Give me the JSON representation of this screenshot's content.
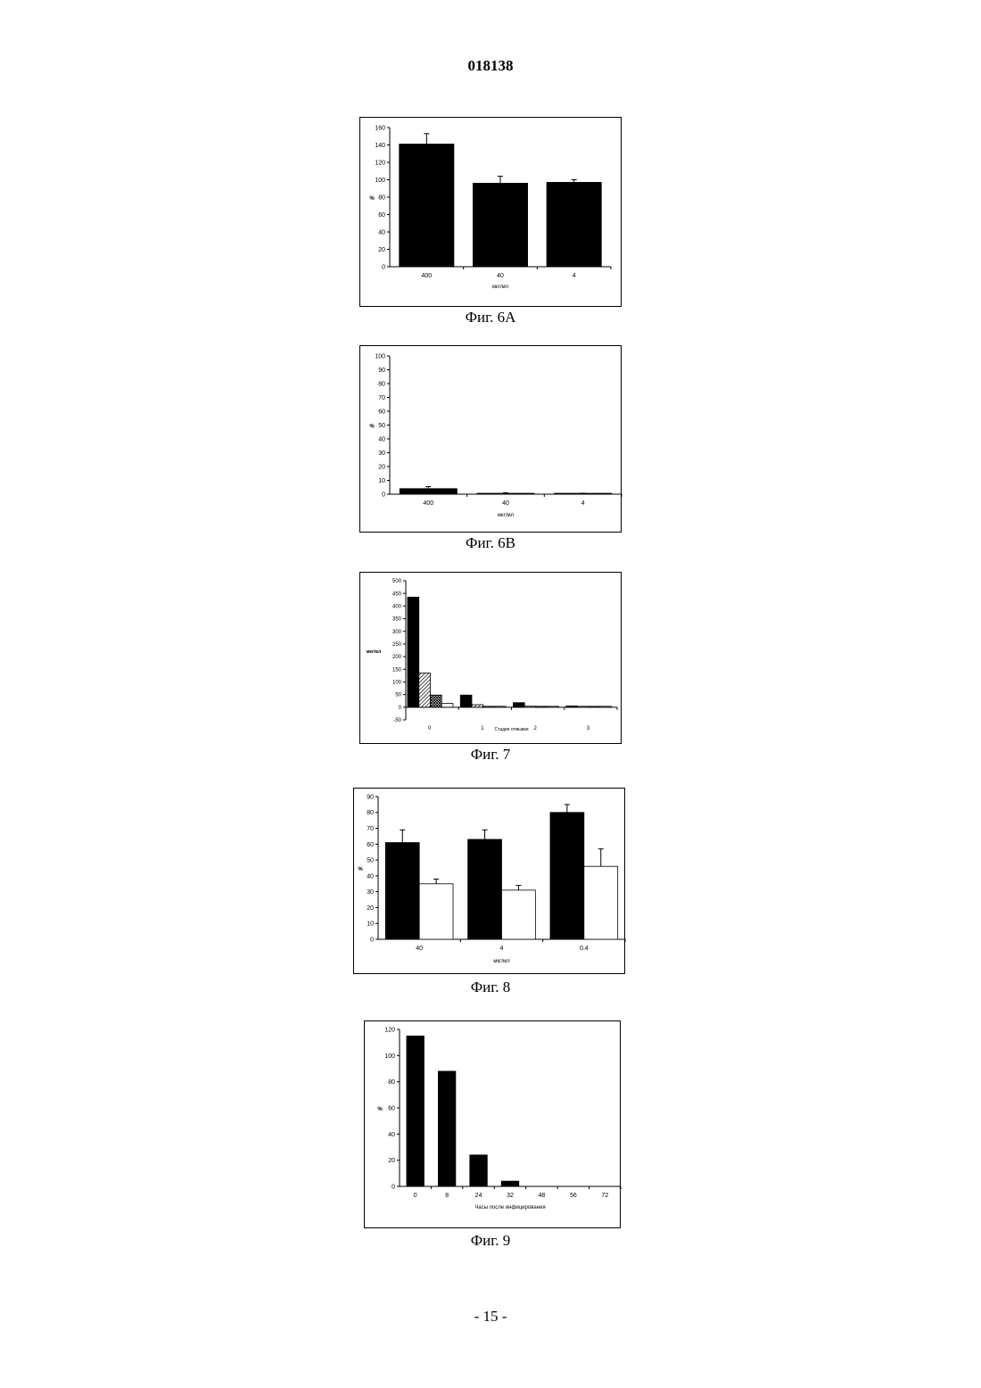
{
  "document": {
    "number": "018138",
    "page": "- 15 -"
  },
  "captions": [
    "Фиг. 6А",
    "Фиг. 6В",
    "Фиг. 7",
    "Фиг. 8",
    "Фиг. 9"
  ],
  "chart_data": [
    {
      "id": "fig6a",
      "type": "bar",
      "title": "",
      "categories": [
        "400",
        "40",
        "4"
      ],
      "series": [
        {
          "values": [
            141,
            96,
            97
          ],
          "errors": [
            12,
            8,
            3
          ],
          "fill": "solid"
        }
      ],
      "xlabel": "мкг/мл",
      "ylabel": "%",
      "ylim": [
        0,
        160
      ],
      "yticks": [
        0,
        20,
        40,
        60,
        80,
        100,
        120,
        140,
        160
      ],
      "grid": false,
      "legend": "none"
    },
    {
      "id": "fig6b",
      "type": "bar",
      "title": "",
      "categories": [
        "400",
        "40",
        "4"
      ],
      "series": [
        {
          "values": [
            4,
            0.3,
            0.2
          ],
          "errors": [
            1.5,
            0.7,
            0.5
          ],
          "fill": "solid"
        }
      ],
      "xlabel": "мкг/мл",
      "ylabel": "%",
      "ylim": [
        0,
        100
      ],
      "yticks": [
        0,
        10,
        20,
        30,
        40,
        50,
        60,
        70,
        80,
        90,
        100
      ],
      "grid": false,
      "legend": "none"
    },
    {
      "id": "fig7",
      "type": "bar",
      "title": "",
      "categories": [
        "0",
        "1",
        "2",
        "3"
      ],
      "series": [
        {
          "values": [
            435,
            48,
            18,
            5
          ],
          "fill": "solid"
        },
        {
          "values": [
            135,
            10,
            4,
            1
          ],
          "fill": "diagonal"
        },
        {
          "values": [
            48,
            3,
            2,
            1
          ],
          "fill": "crosshatch"
        },
        {
          "values": [
            15,
            1,
            1,
            1
          ],
          "fill": "white"
        }
      ],
      "xlabel": "Стадия отмывки",
      "ylabel": "мкг/мл",
      "ylim": [
        -50,
        500
      ],
      "yticks": [
        -50,
        0,
        50,
        100,
        150,
        200,
        250,
        300,
        350,
        400,
        450,
        500
      ],
      "grid": false,
      "legend": "none"
    },
    {
      "id": "fig8",
      "type": "bar",
      "title": "",
      "categories": [
        "40",
        "4",
        "0.4"
      ],
      "series": [
        {
          "values": [
            61,
            63,
            80
          ],
          "errors": [
            8,
            6,
            5
          ],
          "fill": "solid"
        },
        {
          "values": [
            35,
            31,
            46
          ],
          "errors": [
            3,
            3,
            11
          ],
          "fill": "white"
        }
      ],
      "xlabel": "мкг/мл",
      "ylabel": "%",
      "ylim": [
        0,
        90
      ],
      "yticks": [
        0,
        10,
        20,
        30,
        40,
        50,
        60,
        70,
        80,
        90
      ],
      "grid": false,
      "legend": "none"
    },
    {
      "id": "fig9",
      "type": "bar",
      "title": "",
      "categories": [
        "0",
        "8",
        "24",
        "32",
        "48",
        "56",
        "72"
      ],
      "series": [
        {
          "values": [
            115,
            88,
            24,
            4,
            0,
            0,
            0
          ],
          "fill": "solid"
        }
      ],
      "xlabel": "Часы после инфицирования",
      "ylabel": "%",
      "ylim": [
        0,
        120
      ],
      "yticks": [
        0,
        20,
        40,
        60,
        80,
        100,
        120
      ],
      "grid": false,
      "legend": "none"
    }
  ]
}
